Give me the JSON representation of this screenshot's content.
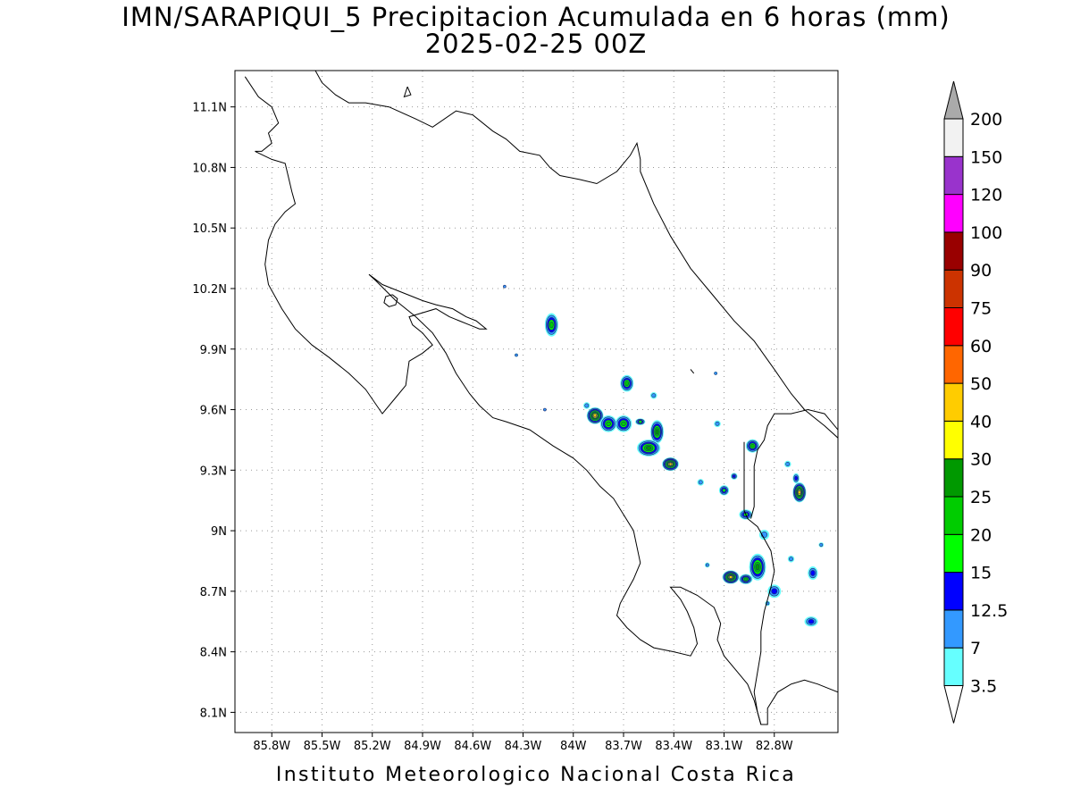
{
  "title": {
    "line1": "IMN/SARAPIQUI_5 Precipitacion Acumulada en 6 horas (mm)",
    "line2": "2025-02-25 00Z"
  },
  "footer": "Instituto Meteorologico Nacional Costa Rica",
  "map": {
    "lon_range": [
      -86.02,
      -82.42
    ],
    "lat_range": [
      8.0,
      11.28
    ],
    "grid": "dotted",
    "lon_ticks": [
      {
        "value": -85.8,
        "label": "85.8W"
      },
      {
        "value": -85.5,
        "label": "85.5W"
      },
      {
        "value": -85.2,
        "label": "85.2W"
      },
      {
        "value": -84.9,
        "label": "84.9W"
      },
      {
        "value": -84.6,
        "label": "84.6W"
      },
      {
        "value": -84.3,
        "label": "84.3W"
      },
      {
        "value": -84.0,
        "label": "84W"
      },
      {
        "value": -83.7,
        "label": "83.7W"
      },
      {
        "value": -83.4,
        "label": "83.4W"
      },
      {
        "value": -83.1,
        "label": "83.1W"
      },
      {
        "value": -82.8,
        "label": "82.8W"
      }
    ],
    "lat_ticks": [
      {
        "value": 11.1,
        "label": "11.1N"
      },
      {
        "value": 10.8,
        "label": "10.8N"
      },
      {
        "value": 10.5,
        "label": "10.5N"
      },
      {
        "value": 10.2,
        "label": "10.2N"
      },
      {
        "value": 9.9,
        "label": "9.9N"
      },
      {
        "value": 9.6,
        "label": "9.6N"
      },
      {
        "value": 9.3,
        "label": "9.3N"
      },
      {
        "value": 9.0,
        "label": "9N"
      },
      {
        "value": 8.7,
        "label": "8.7N"
      },
      {
        "value": 8.4,
        "label": "8.4N"
      },
      {
        "value": 8.1,
        "label": "8.1N"
      }
    ],
    "coastlines": [
      [
        [
          -85.96,
          11.25
        ],
        [
          -85.88,
          11.15
        ],
        [
          -85.8,
          11.1
        ],
        [
          -85.76,
          11.02
        ],
        [
          -85.82,
          10.97
        ],
        [
          -85.8,
          10.92
        ],
        [
          -85.86,
          10.88
        ],
        [
          -85.9,
          10.88
        ],
        [
          -85.8,
          10.84
        ],
        [
          -85.72,
          10.82
        ],
        [
          -85.7,
          10.75
        ],
        [
          -85.68,
          10.68
        ],
        [
          -85.66,
          10.62
        ],
        [
          -85.72,
          10.58
        ],
        [
          -85.78,
          10.52
        ],
        [
          -85.82,
          10.44
        ],
        [
          -85.84,
          10.32
        ],
        [
          -85.82,
          10.22
        ],
        [
          -85.74,
          10.1
        ],
        [
          -85.66,
          10.0
        ],
        [
          -85.56,
          9.92
        ],
        [
          -85.46,
          9.86
        ],
        [
          -85.34,
          9.78
        ],
        [
          -85.24,
          9.7
        ],
        [
          -85.14,
          9.58
        ],
        [
          -85.06,
          9.66
        ],
        [
          -85.0,
          9.72
        ],
        [
          -84.98,
          9.84
        ],
        [
          -84.9,
          9.88
        ],
        [
          -84.84,
          9.92
        ],
        [
          -84.9,
          9.98
        ],
        [
          -84.96,
          10.02
        ],
        [
          -84.98,
          10.06
        ],
        [
          -84.9,
          10.08
        ],
        [
          -84.82,
          10.1
        ],
        [
          -84.74,
          10.06
        ],
        [
          -84.68,
          10.04
        ],
        [
          -84.62,
          10.02
        ],
        [
          -84.56,
          10.0
        ],
        [
          -84.52,
          10.0
        ],
        [
          -84.58,
          10.04
        ],
        [
          -84.64,
          10.06
        ],
        [
          -84.72,
          10.1
        ],
        [
          -84.82,
          10.12
        ],
        [
          -84.9,
          10.14
        ],
        [
          -84.96,
          10.16
        ],
        [
          -85.02,
          10.18
        ],
        [
          -85.08,
          10.2
        ],
        [
          -85.14,
          10.22
        ],
        [
          -85.22,
          10.27
        ],
        [
          -85.18,
          10.24
        ],
        [
          -85.06,
          10.14
        ],
        [
          -84.94,
          10.06
        ],
        [
          -84.84,
          9.98
        ],
        [
          -84.76,
          9.88
        ],
        [
          -84.7,
          9.78
        ],
        [
          -84.62,
          9.68
        ],
        [
          -84.56,
          9.62
        ],
        [
          -84.48,
          9.56
        ],
        [
          -84.4,
          9.54
        ],
        [
          -84.26,
          9.5
        ],
        [
          -84.12,
          9.42
        ],
        [
          -84.0,
          9.36
        ],
        [
          -83.92,
          9.3
        ],
        [
          -83.84,
          9.22
        ],
        [
          -83.76,
          9.16
        ],
        [
          -83.7,
          9.08
        ],
        [
          -83.64,
          9.0
        ],
        [
          -83.62,
          8.92
        ],
        [
          -83.6,
          8.84
        ],
        [
          -83.64,
          8.76
        ],
        [
          -83.68,
          8.7
        ],
        [
          -83.72,
          8.64
        ],
        [
          -83.74,
          8.58
        ],
        [
          -83.68,
          8.52
        ],
        [
          -83.6,
          8.46
        ],
        [
          -83.52,
          8.42
        ],
        [
          -83.4,
          8.4
        ],
        [
          -83.3,
          8.38
        ],
        [
          -83.26,
          8.44
        ],
        [
          -83.28,
          8.52
        ],
        [
          -83.32,
          8.6
        ],
        [
          -83.36,
          8.66
        ],
        [
          -83.42,
          8.72
        ],
        [
          -83.36,
          8.72
        ],
        [
          -83.26,
          8.68
        ],
        [
          -83.16,
          8.62
        ],
        [
          -83.12,
          8.54
        ],
        [
          -83.14,
          8.46
        ],
        [
          -83.1,
          8.38
        ],
        [
          -83.02,
          8.3
        ],
        [
          -82.96,
          8.24
        ],
        [
          -82.92,
          8.16
        ],
        [
          -82.9,
          8.1
        ],
        [
          -82.88,
          8.04
        ],
        [
          -82.84,
          8.04
        ],
        [
          -82.84,
          8.12
        ],
        [
          -82.78,
          8.2
        ],
        [
          -82.7,
          8.24
        ],
        [
          -82.62,
          8.26
        ],
        [
          -82.54,
          8.24
        ],
        [
          -82.48,
          8.22
        ],
        [
          -82.42,
          8.2
        ]
      ],
      [
        [
          -85.54,
          11.28
        ],
        [
          -85.5,
          11.22
        ],
        [
          -85.42,
          11.16
        ],
        [
          -85.34,
          11.12
        ],
        [
          -85.24,
          11.12
        ],
        [
          -85.1,
          11.1
        ],
        [
          -84.94,
          11.04
        ],
        [
          -84.84,
          11.0
        ],
        [
          -84.7,
          11.08
        ],
        [
          -84.6,
          11.06
        ],
        [
          -84.48,
          10.98
        ],
        [
          -84.4,
          10.94
        ],
        [
          -84.32,
          10.88
        ],
        [
          -84.2,
          10.86
        ],
        [
          -84.14,
          10.8
        ],
        [
          -84.08,
          10.76
        ],
        [
          -83.96,
          10.74
        ],
        [
          -83.86,
          10.72
        ],
        [
          -83.74,
          10.78
        ],
        [
          -83.66,
          10.86
        ],
        [
          -83.62,
          10.92
        ],
        [
          -83.6,
          10.84
        ],
        [
          -83.6,
          10.78
        ],
        [
          -83.52,
          10.62
        ],
        [
          -83.42,
          10.46
        ],
        [
          -83.3,
          10.3
        ],
        [
          -83.16,
          10.16
        ],
        [
          -83.04,
          10.04
        ],
        [
          -82.92,
          9.94
        ],
        [
          -82.8,
          9.8
        ],
        [
          -82.7,
          9.68
        ],
        [
          -82.62,
          9.6
        ],
        [
          -82.56,
          9.56
        ],
        [
          -82.5,
          9.52
        ],
        [
          -82.42,
          9.46
        ]
      ],
      [
        [
          -82.42,
          9.5
        ],
        [
          -82.5,
          9.58
        ],
        [
          -82.6,
          9.6
        ],
        [
          -82.7,
          9.58
        ],
        [
          -82.8,
          9.58
        ],
        [
          -82.84,
          9.52
        ],
        [
          -82.86,
          9.45
        ],
        [
          -82.9,
          9.4
        ],
        [
          -82.92,
          9.32
        ],
        [
          -82.92,
          9.24
        ],
        [
          -82.92,
          9.12
        ],
        [
          -82.94,
          9.06
        ]
      ],
      [
        [
          -82.98,
          9.44
        ],
        [
          -82.98,
          9.36
        ],
        [
          -82.98,
          9.28
        ],
        [
          -82.98,
          9.18
        ],
        [
          -82.98,
          9.1
        ],
        [
          -82.96,
          9.06
        ],
        [
          -82.9,
          9.02
        ],
        [
          -82.86,
          8.96
        ],
        [
          -82.82,
          8.9
        ],
        [
          -82.8,
          8.8
        ],
        [
          -82.82,
          8.72
        ],
        [
          -82.86,
          8.6
        ],
        [
          -82.88,
          8.5
        ],
        [
          -82.88,
          8.4
        ],
        [
          -82.9,
          8.3
        ],
        [
          -82.92,
          8.2
        ],
        [
          -82.9,
          8.1
        ],
        [
          -82.88,
          8.04
        ]
      ],
      [
        [
          -85.08,
          10.17
        ],
        [
          -85.12,
          10.16
        ],
        [
          -85.13,
          10.13
        ],
        [
          -85.1,
          10.11
        ],
        [
          -85.06,
          10.12
        ],
        [
          -85.05,
          10.15
        ],
        [
          -85.08,
          10.17
        ]
      ],
      [
        [
          -84.99,
          11.2
        ],
        [
          -84.97,
          11.16
        ],
        [
          -85.01,
          11.15
        ],
        [
          -84.99,
          11.2
        ]
      ],
      [
        [
          -83.3,
          9.8
        ],
        [
          -83.28,
          9.78
        ]
      ]
    ]
  },
  "colorbar": {
    "colors": [
      "#66ffff",
      "#3399ff",
      "#0000ff",
      "#00ff00",
      "#00cc00",
      "#009900",
      "#ffff00",
      "#ffcc00",
      "#ff6600",
      "#ff0000",
      "#cc3300",
      "#990000",
      "#ff00ff",
      "#9933cc",
      "#f2f2f2"
    ],
    "labels": [
      "3.5",
      "7",
      "12.5",
      "15",
      "20",
      "25",
      "30",
      "40",
      "50",
      "60",
      "75",
      "90",
      "100",
      "120",
      "150",
      "200"
    ],
    "over_color": "#aaaaaa",
    "under_color": "#ffffff"
  },
  "precip_cells": [
    {
      "lon": -84.13,
      "lat": 10.02,
      "rx": 0.04,
      "ry": 0.07,
      "level": 4
    },
    {
      "lon": -83.87,
      "lat": 9.57,
      "rx": 0.05,
      "ry": 0.05,
      "level": 7
    },
    {
      "lon": -83.7,
      "lat": 9.53,
      "rx": 0.05,
      "ry": 0.05,
      "level": 4
    },
    {
      "lon": -83.79,
      "lat": 9.53,
      "rx": 0.05,
      "ry": 0.05,
      "level": 4
    },
    {
      "lon": -83.68,
      "lat": 9.73,
      "rx": 0.04,
      "ry": 0.05,
      "level": 4
    },
    {
      "lon": -83.5,
      "lat": 9.49,
      "rx": 0.04,
      "ry": 0.07,
      "level": 5
    },
    {
      "lon": -83.55,
      "lat": 9.41,
      "rx": 0.07,
      "ry": 0.05,
      "level": 5
    },
    {
      "lon": -83.42,
      "lat": 9.33,
      "rx": 0.05,
      "ry": 0.04,
      "level": 7
    },
    {
      "lon": -83.6,
      "lat": 9.54,
      "rx": 0.03,
      "ry": 0.02,
      "level": 3
    },
    {
      "lon": -82.93,
      "lat": 9.42,
      "rx": 0.04,
      "ry": 0.04,
      "level": 4
    },
    {
      "lon": -83.1,
      "lat": 9.2,
      "rx": 0.03,
      "ry": 0.03,
      "level": 3
    },
    {
      "lon": -82.97,
      "lat": 9.08,
      "rx": 0.04,
      "ry": 0.03,
      "level": 3
    },
    {
      "lon": -82.65,
      "lat": 9.19,
      "rx": 0.04,
      "ry": 0.06,
      "level": 7
    },
    {
      "lon": -82.9,
      "lat": 8.82,
      "rx": 0.05,
      "ry": 0.08,
      "level": 5
    },
    {
      "lon": -83.06,
      "lat": 8.77,
      "rx": 0.05,
      "ry": 0.04,
      "level": 7
    },
    {
      "lon": -82.97,
      "lat": 8.76,
      "rx": 0.04,
      "ry": 0.03,
      "level": 4
    },
    {
      "lon": -82.8,
      "lat": 8.7,
      "rx": 0.04,
      "ry": 0.04,
      "level": 2
    },
    {
      "lon": -82.57,
      "lat": 8.79,
      "rx": 0.03,
      "ry": 0.04,
      "level": 2
    },
    {
      "lon": -82.58,
      "lat": 8.55,
      "rx": 0.04,
      "ry": 0.03,
      "level": 2
    },
    {
      "lon": -82.86,
      "lat": 8.98,
      "rx": 0.03,
      "ry": 0.03,
      "level": 1
    },
    {
      "lon": -83.04,
      "lat": 9.27,
      "rx": 0.02,
      "ry": 0.02,
      "level": 2
    },
    {
      "lon": -82.67,
      "lat": 9.26,
      "rx": 0.02,
      "ry": 0.03,
      "level": 2
    },
    {
      "lon": -83.92,
      "lat": 9.62,
      "rx": 0.02,
      "ry": 0.02,
      "level": 1
    },
    {
      "lon": -83.52,
      "lat": 9.67,
      "rx": 0.02,
      "ry": 0.02,
      "level": 1
    },
    {
      "lon": -83.24,
      "lat": 9.24,
      "rx": 0.02,
      "ry": 0.02,
      "level": 1
    },
    {
      "lon": -83.14,
      "lat": 9.53,
      "rx": 0.02,
      "ry": 0.02,
      "level": 1
    },
    {
      "lon": -83.2,
      "lat": 8.83,
      "rx": 0.015,
      "ry": 0.015,
      "level": 1
    },
    {
      "lon": -82.72,
      "lat": 9.33,
      "rx": 0.02,
      "ry": 0.02,
      "level": 1
    },
    {
      "lon": -82.7,
      "lat": 8.86,
      "rx": 0.02,
      "ry": 0.02,
      "level": 1
    },
    {
      "lon": -82.84,
      "lat": 8.64,
      "rx": 0.015,
      "ry": 0.015,
      "level": 1
    },
    {
      "lon": -82.52,
      "lat": 8.93,
      "rx": 0.015,
      "ry": 0.015,
      "level": 1
    },
    {
      "lon": -84.34,
      "lat": 9.87,
      "rx": 0.01,
      "ry": 0.01,
      "level": 1
    },
    {
      "lon": -84.41,
      "lat": 10.21,
      "rx": 0.008,
      "ry": 0.008,
      "level": 1
    },
    {
      "lon": -83.15,
      "lat": 9.78,
      "rx": 0.01,
      "ry": 0.01,
      "level": 1
    },
    {
      "lon": -84.17,
      "lat": 9.6,
      "rx": 0.008,
      "ry": 0.008,
      "level": 1
    }
  ]
}
